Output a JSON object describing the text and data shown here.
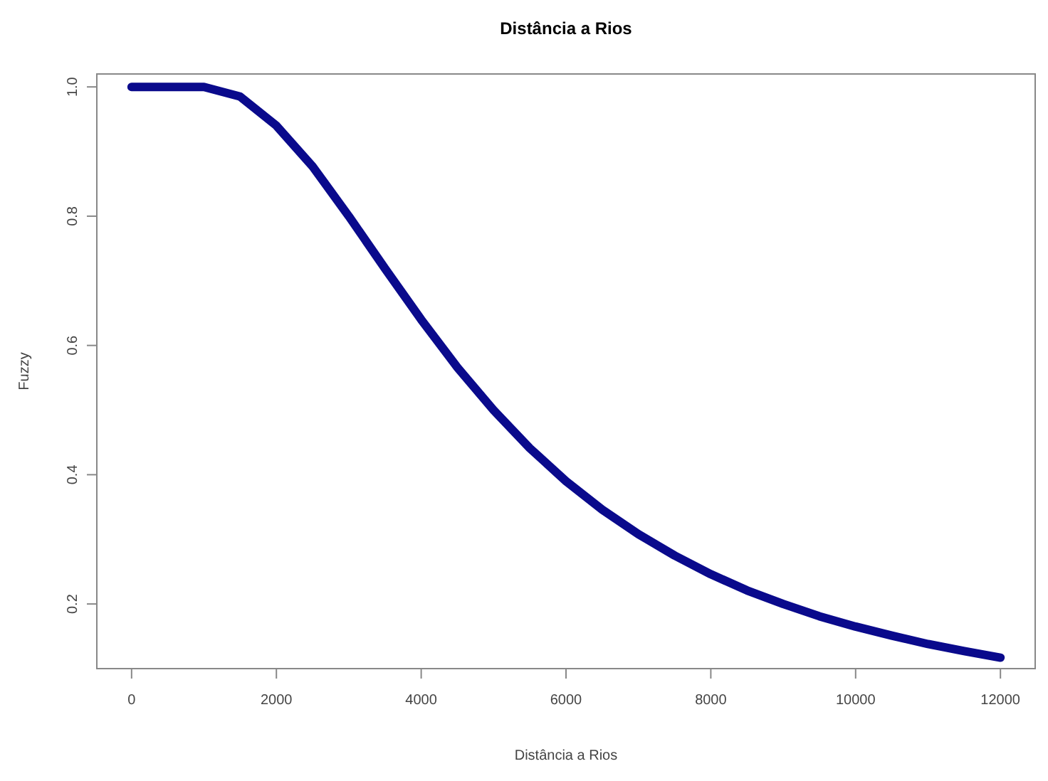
{
  "chart_data": {
    "type": "line",
    "title": "Distância a Rios",
    "xlabel": "Distância a Rios",
    "ylabel": "Fuzzy",
    "x": [
      0,
      500,
      1000,
      1500,
      2000,
      2500,
      3000,
      3500,
      4000,
      4500,
      5000,
      5500,
      6000,
      6500,
      7000,
      7500,
      8000,
      8500,
      9000,
      9500,
      10000,
      10500,
      11000,
      11500,
      12000
    ],
    "series": [
      {
        "color": "#0a0a8c",
        "values": [
          1,
          1,
          1,
          0.985,
          0.94,
          0.877,
          0.8,
          0.719,
          0.64,
          0.566,
          0.5,
          0.441,
          0.39,
          0.346,
          0.308,
          0.275,
          0.246,
          0.221,
          0.2,
          0.181,
          0.165,
          0.151,
          0.138,
          0.127,
          0.117
        ]
      }
    ],
    "xlim": [
      -480,
      12480
    ],
    "ylim": [
      0.1,
      1.02
    ],
    "xticks": [
      0,
      2000,
      4000,
      6000,
      8000,
      10000,
      12000
    ],
    "yticks": [
      0.2,
      0.4,
      0.6,
      0.8,
      {
        "value": 1,
        "label": "1.0"
      }
    ],
    "line_style": "solid",
    "marker": "none"
  }
}
